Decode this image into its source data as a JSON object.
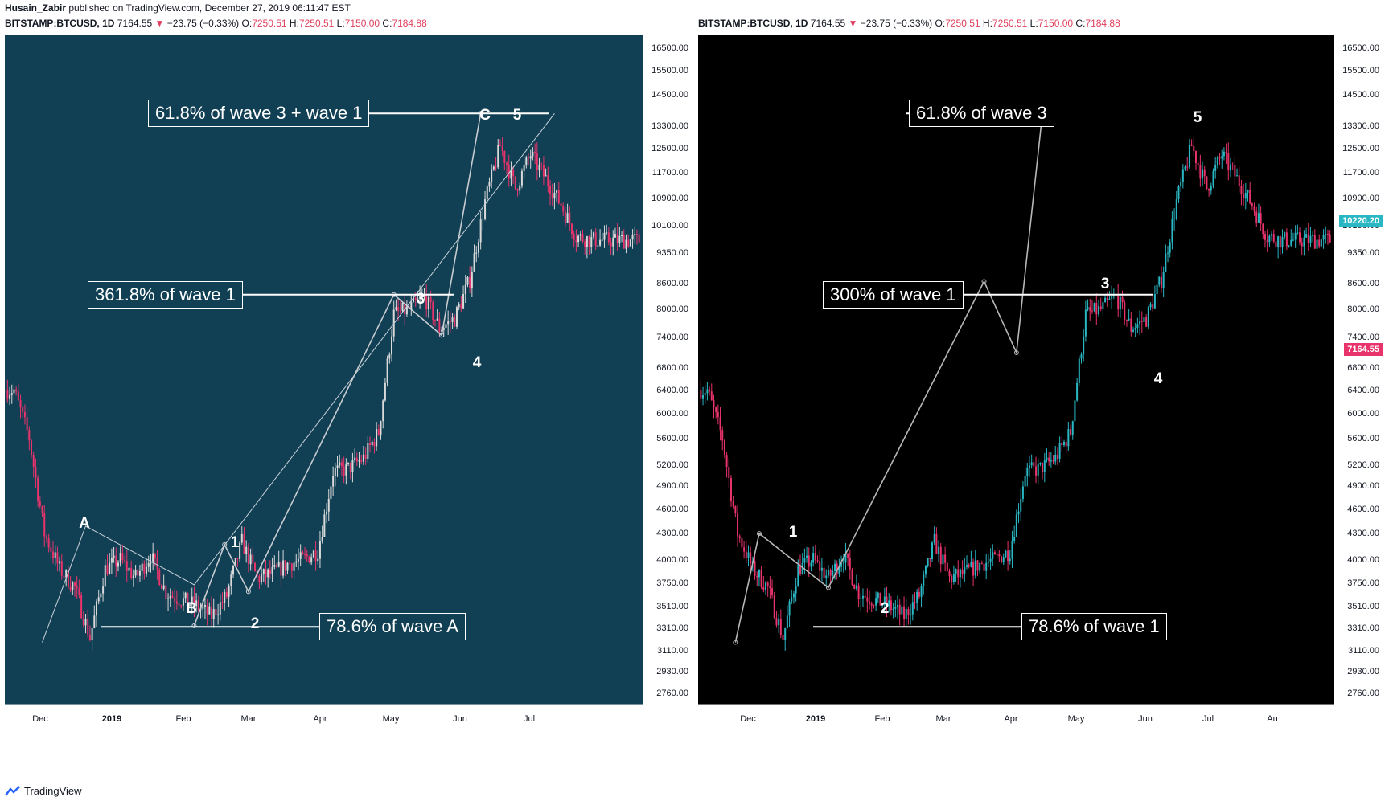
{
  "publish": {
    "author": "Husain_Zabir",
    "rest": "published on TradingView.com, December 27, 2019 06:11:47 EST"
  },
  "symbol": {
    "name": "BITSTAMP:BTCUSD, 1D",
    "last": "7164.55",
    "arrow": "▼",
    "change": "−23.75 (−0.33%)",
    "o_label": "O:",
    "o": "7250.51",
    "h_label": "H:",
    "h": "7250.51",
    "l_label": "L:",
    "l": "7150.00",
    "c_label": "C:",
    "c": "7184.88"
  },
  "footer": {
    "brand": "TradingView"
  },
  "colors": {
    "left_bg": "#114055",
    "right_bg": "#000000",
    "up_left": "#d9d9d9",
    "up_right": "#2ab7c4",
    "down": "#e8336b"
  },
  "y_ticks": [
    "16500.00",
    "15500.00",
    "14500.00",
    "13300.00",
    "12500.00",
    "11700.00",
    "10900.00",
    "10100.00",
    "9350.00",
    "8600.00",
    "8000.00",
    "7400.00",
    "6800.00",
    "6400.00",
    "6000.00",
    "5600.00",
    "5200.00",
    "4900.00",
    "4600.00",
    "4300.00",
    "4000.00",
    "3750.00",
    "3510.00",
    "3310.00",
    "3110.00",
    "2930.00",
    "2760.00"
  ],
  "chart_data": [
    {
      "type": "candlestick",
      "scale": "log",
      "x_ticks": [
        "Dec",
        "2019",
        "Feb",
        "Mar",
        "Apr",
        "May",
        "Jun",
        "Jul"
      ],
      "ylim": [
        2700,
        17000
      ],
      "series": [
        {
          "values": [
            [
              3,
              6400
            ],
            [
              10,
              5600
            ],
            [
              17,
              4300
            ],
            [
              24,
              3900
            ],
            [
              31,
              3700
            ],
            [
              38,
              3220
            ],
            [
              45,
              3900
            ],
            [
              52,
              4000
            ],
            [
              59,
              3800
            ],
            [
              66,
              4050
            ],
            [
              73,
              3650
            ],
            [
              80,
              3580
            ],
            [
              87,
              3520
            ],
            [
              94,
              3420
            ],
            [
              101,
              3620
            ],
            [
              108,
              4200
            ],
            [
              115,
              3800
            ],
            [
              122,
              3850
            ],
            [
              129,
              3950
            ],
            [
              136,
              4000
            ],
            [
              143,
              4100
            ],
            [
              150,
              5100
            ],
            [
              157,
              5150
            ],
            [
              164,
              5300
            ],
            [
              171,
              5700
            ],
            [
              178,
              7900
            ],
            [
              185,
              8000
            ],
            [
              192,
              8300
            ],
            [
              199,
              7600
            ],
            [
              206,
              7800
            ],
            [
              213,
              8700
            ],
            [
              220,
              10800
            ],
            [
              227,
              12600
            ],
            [
              234,
              11200
            ],
            [
              241,
              12300
            ],
            [
              248,
              11500
            ],
            [
              255,
              10700
            ],
            [
              262,
              9800
            ],
            [
              269,
              9700
            ]
          ]
        }
      ],
      "waves": [
        {
          "label": "A",
          "x": 95,
          "price": 4390
        },
        {
          "label": "B",
          "x": 144,
          "price": 3320
        },
        {
          "label": "1",
          "x": 160,
          "price": 4170
        },
        {
          "label": "2",
          "x": 171,
          "price": 3660
        },
        {
          "label": "3",
          "x": 218,
          "price": 8340
        },
        {
          "label": "4",
          "x": 243,
          "price": 7450
        },
        {
          "label": "C",
          "x": 256,
          "price": 13780
        },
        {
          "label": "5",
          "x": 258,
          "price": 13780
        }
      ],
      "fib_lines": [
        {
          "label": "61.8% of wave 3 + wave 1",
          "price": 13780
        },
        {
          "label": "361.8% of wave 1",
          "price": 8340
        },
        {
          "label": "78.6% of wave A",
          "price": 3320
        }
      ]
    },
    {
      "type": "candlestick",
      "scale": "log",
      "x_ticks": [
        "Dec",
        "2019",
        "Feb",
        "Mar",
        "Apr",
        "May",
        "Jun",
        "Jul",
        "Au"
      ],
      "ylim": [
        2700,
        17000
      ],
      "series": [
        {
          "values": []
        }
      ],
      "waves": [
        {
          "label": "1",
          "x": 95,
          "price": 4300
        },
        {
          "label": "2",
          "x": 146,
          "price": 3700
        },
        {
          "label": "3",
          "x": 218,
          "price": 8650
        },
        {
          "label": "4",
          "x": 243,
          "price": 7100
        },
        {
          "label": "5",
          "x": 258,
          "price": 13780
        }
      ],
      "fib_lines": [
        {
          "label": "61.8% of wave 3",
          "price": 13780
        },
        {
          "label": "300% of wave 1",
          "price": 8340
        },
        {
          "label": "78.6% of wave 1",
          "price": 3320
        }
      ],
      "price_tags": [
        {
          "value": "10220.20",
          "price": 10220,
          "color": "#2ab7c4"
        },
        {
          "value": "7164.55",
          "price": 7164,
          "color": "#e8336b"
        }
      ]
    }
  ]
}
